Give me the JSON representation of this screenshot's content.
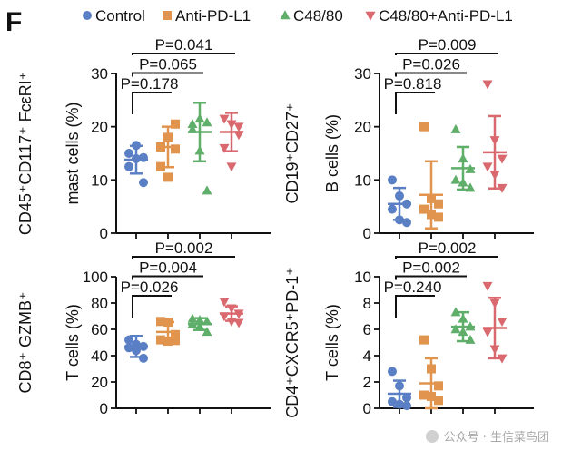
{
  "panel_letter": "F",
  "legend": [
    {
      "label": "Control",
      "color": "#5b7fc4",
      "marker": "circle"
    },
    {
      "label": "Anti-PD-L1",
      "color": "#e0944d",
      "marker": "square"
    },
    {
      "label": "C48/80",
      "color": "#5fae6a",
      "marker": "triangle"
    },
    {
      "label": "C48/80+Anti-PD-L1",
      "color": "#d9696f",
      "marker": "triangle-down"
    }
  ],
  "watermark": "公众号 · 生信菜鸟团",
  "chart_data": [
    {
      "type": "scatter",
      "id": "mast",
      "ylabel_line1": "CD45⁺CD117⁺ FcεRI⁺",
      "ylabel_line2": "mast cells (%)",
      "ylim": [
        0,
        30
      ],
      "yticks": [
        0,
        10,
        20,
        30
      ],
      "groups": [
        {
          "name": "Control",
          "values": [
            12.5,
            14.0,
            14.2,
            15.0,
            16.5,
            9.5
          ],
          "mean": 13.8,
          "sd": 2.6
        },
        {
          "name": "Anti-PD-L1",
          "values": [
            12.5,
            10.5,
            15.8,
            16.2,
            18.0,
            20.5
          ],
          "mean": 16.2,
          "sd": 3.8
        },
        {
          "name": "C48/80",
          "values": [
            20.5,
            21.5,
            20.8,
            19.5,
            15.5,
            8.0
          ],
          "mean": 19.0,
          "sd": 5.5
        },
        {
          "name": "C48/80+Anti-PD-L1",
          "values": [
            21.5,
            20.5,
            18.5,
            16.0,
            12.5,
            20.0
          ],
          "mean": 19.0,
          "sd": 3.6
        }
      ],
      "comparisons": [
        {
          "from": 0,
          "to": 1,
          "label": "P=0.178"
        },
        {
          "from": 0,
          "to": 2,
          "label": "P=0.065"
        },
        {
          "from": 0,
          "to": 3,
          "label": "P=0.041"
        }
      ]
    },
    {
      "type": "scatter",
      "id": "bcells",
      "ylabel_line1": "CD19⁺CD27⁺",
      "ylabel_line2": "B cells (%)",
      "ylim": [
        0,
        30
      ],
      "yticks": [
        0,
        10,
        20,
        30
      ],
      "groups": [
        {
          "name": "Control",
          "values": [
            10.0,
            7.0,
            5.5,
            4.5,
            2.5,
            2.0
          ],
          "mean": 5.5,
          "sd": 3.0
        },
        {
          "name": "Anti-PD-L1",
          "values": [
            20.0,
            6.5,
            5.5,
            4.5,
            3.5,
            3.0
          ],
          "mean": 7.2,
          "sd": 6.3
        },
        {
          "name": "C48/80",
          "values": [
            19.5,
            14.0,
            12.0,
            10.0,
            9.5,
            8.5
          ],
          "mean": 12.2,
          "sd": 4.0
        },
        {
          "name": "C48/80+Anti-PD-L1",
          "values": [
            28.0,
            17.5,
            14.0,
            12.5,
            11.0,
            8.5
          ],
          "mean": 15.2,
          "sd": 6.8
        }
      ],
      "comparisons": [
        {
          "from": 0,
          "to": 1,
          "label": "P=0.818"
        },
        {
          "from": 0,
          "to": 2,
          "label": "P=0.026"
        },
        {
          "from": 0,
          "to": 3,
          "label": "P=0.009"
        }
      ]
    },
    {
      "type": "scatter",
      "id": "cd8",
      "ylabel_line1": "CD8⁺ GZMB⁺",
      "ylabel_line2": "T cells (%)",
      "ylim": [
        0,
        100
      ],
      "yticks": [
        0,
        20,
        40,
        60,
        80,
        100
      ],
      "groups": [
        {
          "name": "Control",
          "values": [
            52.0,
            48.5,
            47.0,
            46.0,
            44.0,
            38.0
          ],
          "mean": 47.0,
          "sd": 8.0
        },
        {
          "name": "Anti-PD-L1",
          "values": [
            66.0,
            65.5,
            56.0,
            52.0,
            51.0,
            51.5
          ],
          "mean": 58.0,
          "sd": 7.5
        },
        {
          "name": "C48/80",
          "values": [
            68.0,
            67.0,
            66.0,
            64.0,
            62.0,
            58.0
          ],
          "mean": 64.0,
          "sd": 4.5
        },
        {
          "name": "C48/80+Anti-PD-L1",
          "values": [
            81.0,
            76.0,
            72.0,
            70.0,
            66.0,
            65.0
          ],
          "mean": 72.0,
          "sd": 5.5
        }
      ],
      "comparisons": [
        {
          "from": 0,
          "to": 1,
          "label": "P=0.026"
        },
        {
          "from": 0,
          "to": 2,
          "label": "P=0.004"
        },
        {
          "from": 0,
          "to": 3,
          "label": "P=0.002"
        }
      ]
    },
    {
      "type": "scatter",
      "id": "cd4",
      "ylabel_line1": "CD4⁺CXCR5⁺PD-1⁺",
      "ylabel_line2": "T cells (%)",
      "ylim": [
        0,
        10
      ],
      "yticks": [
        0,
        2,
        4,
        6,
        8,
        10
      ],
      "groups": [
        {
          "name": "Control",
          "values": [
            2.8,
            1.7,
            0.8,
            0.5,
            0.3,
            0.2
          ],
          "mean": 1.1,
          "sd": 1.0
        },
        {
          "name": "Anti-PD-L1",
          "values": [
            5.2,
            3.0,
            1.7,
            1.0,
            0.9,
            0.6
          ],
          "mean": 1.9,
          "sd": 1.9
        },
        {
          "name": "C48/80",
          "values": [
            7.3,
            6.8,
            6.2,
            6.0,
            5.8,
            5.2
          ],
          "mean": 6.2,
          "sd": 1.1
        },
        {
          "name": "C48/80+Anti-PD-L1",
          "values": [
            9.3,
            8.0,
            6.6,
            5.8,
            4.5,
            3.8
          ],
          "mean": 6.1,
          "sd": 2.3
        }
      ],
      "comparisons": [
        {
          "from": 0,
          "to": 1,
          "label": "P=0.240"
        },
        {
          "from": 0,
          "to": 2,
          "label": "P=0.002"
        },
        {
          "from": 0,
          "to": 3,
          "label": "P=0.002"
        }
      ]
    }
  ]
}
